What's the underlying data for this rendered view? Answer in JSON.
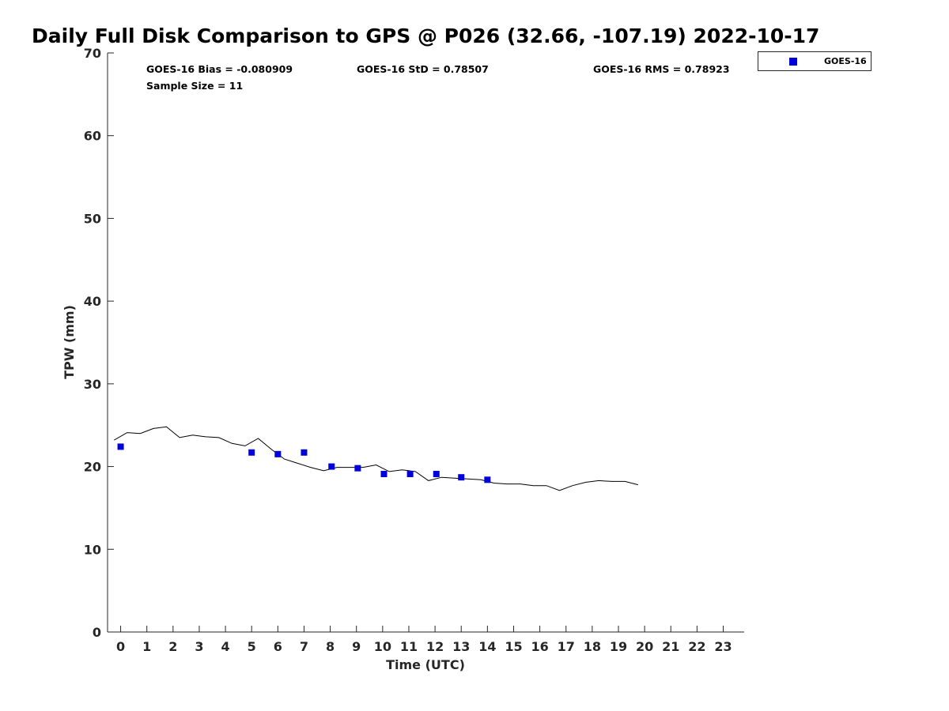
{
  "chart_data": {
    "type": "scatter",
    "title": "Daily Full Disk Comparison to GPS @ P026 (32.66, -107.19) 2022-10-17",
    "xlabel": "Time (UTC)",
    "ylabel": "TPW (mm)",
    "xlim": [
      -0.5,
      23.8
    ],
    "ylim": [
      0,
      70
    ],
    "x_ticks": [
      "0",
      "1",
      "2",
      "3",
      "4",
      "5",
      "6",
      "7",
      "8",
      "9",
      "10",
      "11",
      "12",
      "13",
      "14",
      "15",
      "16",
      "17",
      "18",
      "19",
      "20",
      "21",
      "22",
      "23"
    ],
    "y_ticks": [
      "0",
      "10",
      "20",
      "30",
      "40",
      "50",
      "60",
      "70"
    ],
    "grid": false,
    "legend_position": "outside-top-right",
    "stats": {
      "bias": "GOES-16 Bias = -0.080909",
      "std": "GOES-16 StD = 0.78507",
      "rms": "GOES-16 RMS = 0.78923",
      "sample": "Sample Size = 11"
    },
    "series": [
      {
        "name": "GOES-16",
        "style": "square-marker",
        "color": "#0000dd",
        "x": [
          0.0,
          5.0,
          6.0,
          7.0,
          8.05,
          9.05,
          10.05,
          11.05,
          12.05,
          13.0,
          14.0
        ],
        "y": [
          22.4,
          21.7,
          21.5,
          21.7,
          20.0,
          19.8,
          19.1,
          19.1,
          19.1,
          18.7,
          18.4
        ]
      },
      {
        "name": "",
        "style": "line",
        "color": "#000000",
        "x": [
          -0.25,
          0.25,
          0.75,
          1.25,
          1.75,
          2.25,
          2.75,
          3.25,
          3.75,
          4.25,
          4.75,
          5.25,
          5.75,
          6.25,
          6.75,
          7.25,
          7.75,
          8.25,
          8.75,
          9.25,
          9.75,
          10.25,
          10.75,
          11.25,
          11.75,
          12.25,
          12.75,
          13.25,
          13.75,
          14.25,
          14.75,
          15.25,
          15.75,
          16.25,
          16.75,
          17.25,
          17.75,
          18.25,
          18.75,
          19.25,
          19.75
        ],
        "y": [
          23.2,
          24.1,
          24.0,
          24.6,
          24.8,
          23.5,
          23.8,
          23.6,
          23.5,
          22.8,
          22.5,
          23.4,
          22.1,
          20.9,
          20.4,
          19.9,
          19.5,
          19.9,
          19.9,
          19.9,
          20.2,
          19.4,
          19.6,
          19.4,
          18.3,
          18.7,
          18.6,
          18.5,
          18.4,
          18.0,
          17.9,
          17.9,
          17.7,
          17.7,
          17.1,
          17.7,
          18.1,
          18.3,
          18.2,
          18.2,
          17.8
        ]
      }
    ]
  }
}
